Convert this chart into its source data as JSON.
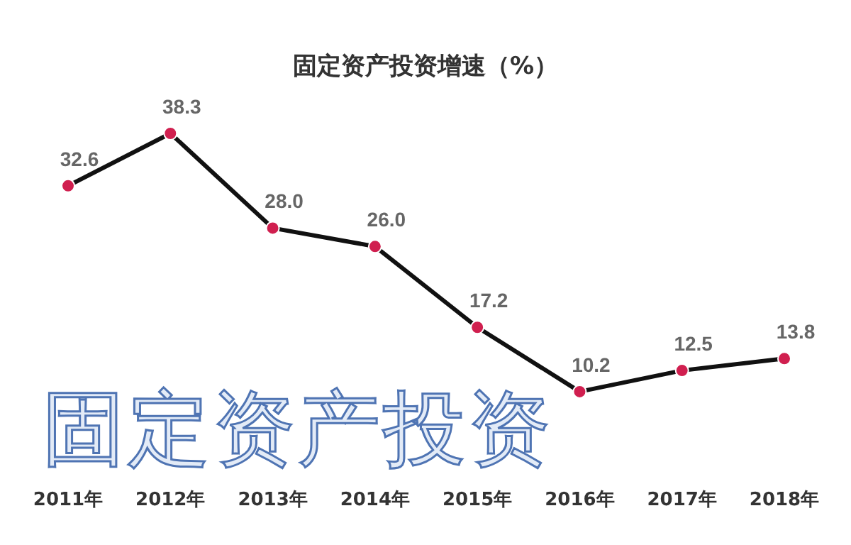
{
  "chart_data": {
    "type": "line",
    "title": "固定资产投资增速（%）",
    "categories": [
      "2011年",
      "2012年",
      "2013年",
      "2014年",
      "2015年",
      "2016年",
      "2017年",
      "2018年"
    ],
    "series": [
      {
        "color": "#111111",
        "values": [
          32.6,
          38.3,
          28.0,
          26.0,
          17.2,
          10.2,
          12.5,
          13.8
        ],
        "value_labels": [
          "32.6",
          "38.3",
          "28.0",
          "26.0",
          "17.2",
          "10.2",
          "12.5",
          "13.8"
        ]
      }
    ],
    "marker": "circle",
    "annotations": [
      "固定资产投资"
    ]
  }
}
